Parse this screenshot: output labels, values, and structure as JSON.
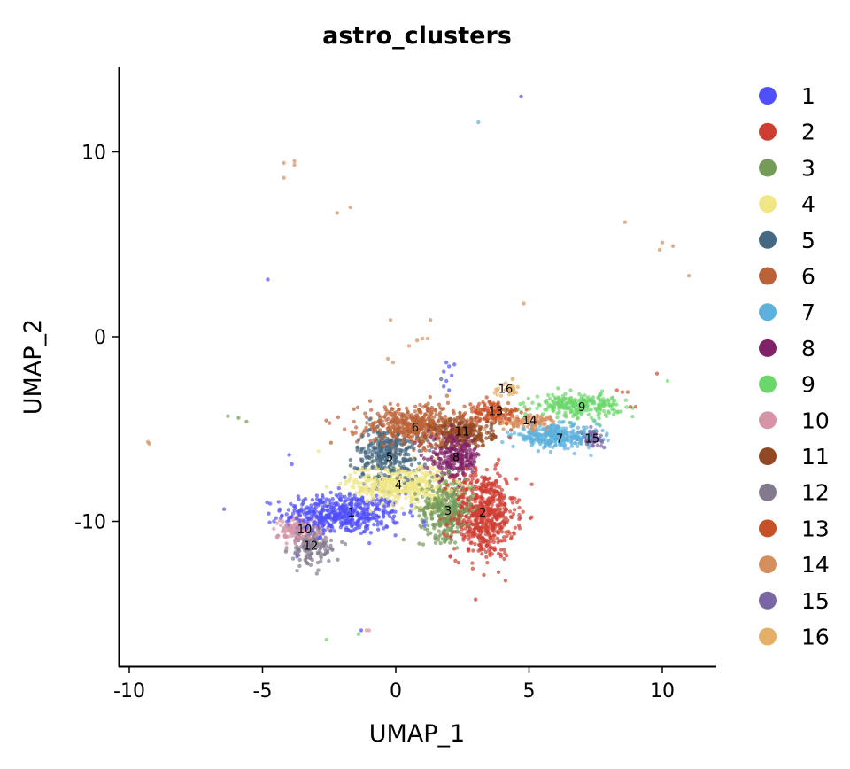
{
  "chart_data": {
    "type": "scatter",
    "title": "astro_clusters",
    "xlabel": "UMAP_1",
    "ylabel": "UMAP_2",
    "xlim": [
      -10.4,
      12.0
    ],
    "ylim": [
      -17.8,
      14.6
    ],
    "xticks": [
      -10,
      -5,
      0,
      5,
      10
    ],
    "xtick_labels": [
      "-10",
      "-5",
      "0",
      "5",
      "10"
    ],
    "yticks": [
      -10,
      0,
      10
    ],
    "ytick_labels": [
      "-10",
      "0",
      "10"
    ],
    "grid": false,
    "legend_position": "right",
    "clusters": [
      {
        "label": "1",
        "color": "#4f4ffb",
        "center": [
          -2.0,
          -9.6
        ],
        "spread": [
          1.1,
          0.55
        ],
        "n": 500,
        "label_pos": [
          -1.66,
          -9.5
        ]
      },
      {
        "label": "2",
        "color": "#ce3d32",
        "center": [
          3.3,
          -9.6
        ],
        "spread": [
          0.6,
          1.2
        ],
        "n": 600,
        "label_pos": [
          3.26,
          -9.5
        ]
      },
      {
        "label": "3",
        "color": "#749b58",
        "center": [
          1.9,
          -9.3
        ],
        "spread": [
          0.5,
          0.8
        ],
        "n": 350,
        "label_pos": [
          1.96,
          -9.4
        ]
      },
      {
        "label": "4",
        "color": "#f0e685",
        "center": [
          0.1,
          -8.0
        ],
        "spread": [
          0.9,
          0.55
        ],
        "n": 450,
        "label_pos": [
          0.1,
          -8.0
        ]
      },
      {
        "label": "5",
        "color": "#466983",
        "center": [
          -0.3,
          -6.4
        ],
        "spread": [
          0.6,
          0.7
        ],
        "n": 300,
        "label_pos": [
          -0.23,
          -6.5
        ]
      },
      {
        "label": "6",
        "color": "#ba6338",
        "center": [
          0.6,
          -4.8
        ],
        "spread": [
          1.0,
          0.55
        ],
        "n": 450,
        "label_pos": [
          0.73,
          -4.9
        ]
      },
      {
        "label": "7",
        "color": "#5db1dd",
        "center": [
          6.0,
          -5.4
        ],
        "spread": [
          0.8,
          0.3
        ],
        "n": 300,
        "label_pos": [
          6.15,
          -5.5
        ]
      },
      {
        "label": "8",
        "color": "#802268",
        "center": [
          2.2,
          -6.5
        ],
        "spread": [
          0.5,
          0.6
        ],
        "n": 250,
        "label_pos": [
          2.26,
          -6.5
        ]
      },
      {
        "label": "9",
        "color": "#6bd76b",
        "center": [
          6.8,
          -3.7
        ],
        "spread": [
          0.8,
          0.3
        ],
        "n": 250,
        "label_pos": [
          6.98,
          -3.8
        ]
      },
      {
        "label": "10",
        "color": "#d595a7",
        "center": [
          -3.6,
          -10.5
        ],
        "spread": [
          0.4,
          0.4
        ],
        "n": 150,
        "label_pos": [
          -3.42,
          -10.4
        ]
      },
      {
        "label": "11",
        "color": "#924822",
        "center": [
          2.5,
          -5.2
        ],
        "spread": [
          0.6,
          0.4
        ],
        "n": 250,
        "label_pos": [
          2.49,
          -5.1
        ]
      },
      {
        "label": "12",
        "color": "#837b8d",
        "center": [
          -3.2,
          -11.4
        ],
        "spread": [
          0.4,
          0.5
        ],
        "n": 150,
        "label_pos": [
          -3.19,
          -11.3
        ]
      },
      {
        "label": "13",
        "color": "#c75127",
        "center": [
          3.7,
          -4.1
        ],
        "spread": [
          0.5,
          0.3
        ],
        "n": 120,
        "label_pos": [
          3.75,
          -4.0
        ]
      },
      {
        "label": "14",
        "color": "#d58f5c",
        "center": [
          4.9,
          -4.6
        ],
        "spread": [
          0.6,
          0.2
        ],
        "n": 100,
        "label_pos": [
          5.02,
          -4.5
        ]
      },
      {
        "label": "15",
        "color": "#7a65a5",
        "center": [
          7.35,
          -5.5
        ],
        "spread": [
          0.2,
          0.2
        ],
        "n": 60,
        "label_pos": [
          7.37,
          -5.5
        ]
      },
      {
        "label": "16",
        "color": "#e4af69",
        "center": [
          4.2,
          -2.8
        ],
        "spread": [
          0.25,
          0.2
        ],
        "n": 30,
        "label_pos": [
          4.12,
          -2.8
        ]
      }
    ],
    "outliers": [
      [
        4.7,
        13.0,
        0
      ],
      [
        3.1,
        11.6,
        6
      ],
      [
        -4.8,
        3.1,
        0
      ],
      [
        -4.2,
        9.4,
        13
      ],
      [
        -4.2,
        8.6,
        13
      ],
      [
        -3.8,
        9.5,
        13
      ],
      [
        -3.8,
        9.3,
        13
      ],
      [
        -2.2,
        6.7,
        13
      ],
      [
        -1.7,
        7.0,
        13
      ],
      [
        9.9,
        4.7,
        13
      ],
      [
        10.0,
        5.1,
        13
      ],
      [
        10.4,
        4.9,
        13
      ],
      [
        11.0,
        3.3,
        13
      ],
      [
        8.6,
        6.2,
        13
      ],
      [
        4.8,
        1.8,
        13
      ],
      [
        -0.2,
        0.9,
        13
      ],
      [
        -0.3,
        -1.2,
        13
      ],
      [
        1.3,
        0.9,
        13
      ],
      [
        1.2,
        -0.1,
        13
      ],
      [
        0.8,
        -0.2,
        13
      ],
      [
        1.0,
        -0.1,
        13
      ],
      [
        0.5,
        -0.5,
        13
      ],
      [
        -0.1,
        -1.4,
        13
      ],
      [
        -9.3,
        -5.7,
        13
      ],
      [
        -9.25,
        -5.8,
        13
      ],
      [
        -6.3,
        -4.3,
        2
      ],
      [
        -5.9,
        -4.4,
        2
      ],
      [
        -5.6,
        -4.6,
        2
      ],
      [
        -2.6,
        -16.4,
        8
      ],
      [
        -1.4,
        -16.1,
        8
      ],
      [
        -1.1,
        -15.9,
        9
      ],
      [
        -1.0,
        -15.9,
        9
      ],
      [
        -1.3,
        -15.9,
        0
      ],
      [
        9.8,
        -2.0,
        12
      ],
      [
        10.2,
        -2.4,
        8
      ],
      [
        8.5,
        -3.0,
        12
      ],
      [
        8.7,
        -3.0,
        12
      ],
      [
        8.8,
        -3.8,
        12
      ],
      [
        9.0,
        -3.8,
        12
      ],
      [
        8.3,
        -2.9,
        12
      ],
      [
        -4.0,
        -6.4,
        0
      ],
      [
        -3.9,
        -6.9,
        0
      ],
      [
        -2.9,
        -6.2,
        3
      ],
      [
        1.9,
        -1.4,
        0
      ],
      [
        2.0,
        -1.6,
        0
      ],
      [
        1.8,
        -1.9,
        0
      ],
      [
        2.1,
        -2.1,
        0
      ],
      [
        1.9,
        -2.4,
        0
      ],
      [
        1.8,
        -2.7,
        0
      ],
      [
        2.0,
        -2.9,
        0
      ],
      [
        2.2,
        -1.5,
        0
      ],
      [
        1.7,
        -2.3,
        4
      ]
    ]
  }
}
